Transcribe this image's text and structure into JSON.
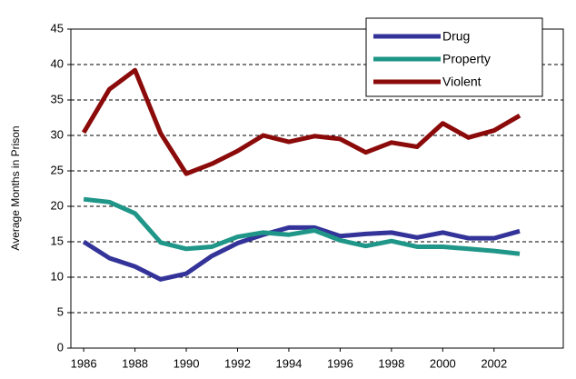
{
  "chart_data": {
    "type": "line",
    "y_label": "Average Months in Prison",
    "x": [
      1986,
      1987,
      1988,
      1989,
      1990,
      1991,
      1992,
      1993,
      1994,
      1995,
      1996,
      1997,
      1998,
      1999,
      2000,
      2001,
      2002,
      2003
    ],
    "series": [
      {
        "name": "Drug",
        "color": "#333399",
        "values": [
          15,
          12.7,
          11.5,
          9.7,
          10.5,
          13,
          14.8,
          16,
          17,
          17,
          15.8,
          16.1,
          16.3,
          15.6,
          16.3,
          15.5,
          15.5,
          16.5
        ]
      },
      {
        "name": "Property",
        "color": "#1f9688",
        "values": [
          21,
          20.6,
          19,
          14.9,
          14,
          14.3,
          15.7,
          16.3,
          16,
          16.6,
          15.2,
          14.4,
          15.1,
          14.3,
          14.3,
          14,
          13.7,
          13.3
        ]
      },
      {
        "name": "Violent",
        "color": "#8b0a0a",
        "values": [
          30.4,
          36.5,
          39.2,
          30.3,
          24.6,
          26,
          27.8,
          30,
          29.1,
          29.9,
          29.5,
          27.6,
          29,
          28.4,
          31.7,
          29.7,
          30.7,
          32.8
        ]
      }
    ],
    "xlim": [
      1985.5,
      2004.7
    ],
    "xticks": [
      1986,
      1988,
      1990,
      1992,
      1994,
      1996,
      1998,
      2000,
      2002
    ],
    "ylim": [
      0,
      45
    ],
    "yticks": [
      0,
      5,
      10,
      15,
      20,
      25,
      30,
      35,
      40,
      45
    ],
    "grid": true,
    "legend": "top-right"
  }
}
